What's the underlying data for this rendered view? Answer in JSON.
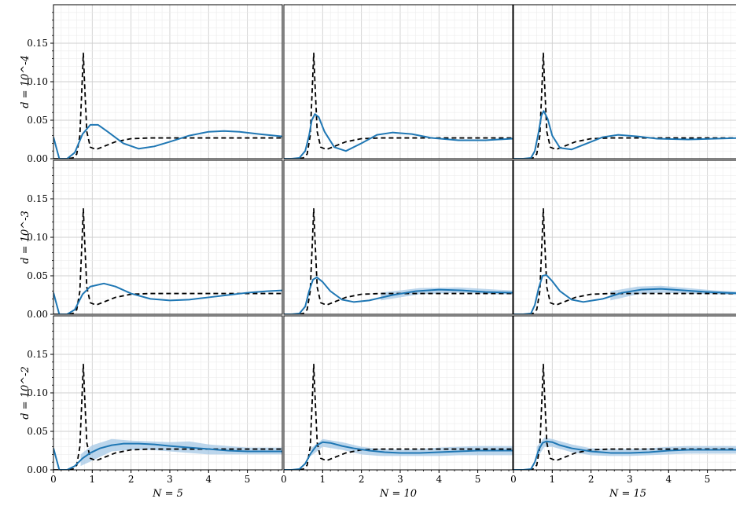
{
  "chart_data": {
    "type": "line",
    "layout": "3x3 grid of panels, shared x and y axes",
    "xlim": [
      0,
      5.9
    ],
    "ylim": [
      0,
      0.2
    ],
    "grid": true,
    "x_ticks": [
      "0",
      "1",
      "2",
      "3",
      "4",
      "5"
    ],
    "y_ticks": [
      "0.00",
      "0.05",
      "0.10",
      "0.15"
    ],
    "row_labels": [
      "d = 10^-4",
      "d = 10^-3",
      "d = 10^-2"
    ],
    "col_labels": [
      "N = 5",
      "N = 10",
      "N = 15"
    ],
    "colors": {
      "estimate": "#1f77b4",
      "band": "#a6c8e6",
      "reference": "#000000"
    },
    "reference": {
      "style": "dashed",
      "x": [
        0,
        0.3,
        0.5,
        0.6,
        0.68,
        0.74,
        0.77,
        0.8,
        0.86,
        0.95,
        1.1,
        1.3,
        1.6,
        2.0,
        2.5,
        3.0,
        4.0,
        5.0,
        5.9
      ],
      "y": [
        0,
        0,
        0.001,
        0.006,
        0.03,
        0.1,
        0.137,
        0.1,
        0.035,
        0.015,
        0.012,
        0.016,
        0.022,
        0.026,
        0.027,
        0.027,
        0.027,
        0.027,
        0.027
      ]
    },
    "panels": [
      {
        "row": 0,
        "col": 0,
        "x": [
          0,
          0.15,
          0.35,
          0.55,
          0.75,
          0.95,
          1.15,
          1.4,
          1.8,
          2.2,
          2.6,
          3.0,
          3.5,
          4.0,
          4.4,
          4.8,
          5.3,
          5.9
        ],
        "y": [
          0.028,
          0.0,
          0.0,
          0.008,
          0.032,
          0.044,
          0.044,
          0.035,
          0.02,
          0.013,
          0.016,
          0.022,
          0.03,
          0.035,
          0.036,
          0.035,
          0.032,
          0.029
        ],
        "band": null
      },
      {
        "row": 0,
        "col": 1,
        "x": [
          0,
          0.2,
          0.4,
          0.55,
          0.65,
          0.72,
          0.8,
          0.9,
          1.05,
          1.3,
          1.6,
          2.0,
          2.4,
          2.8,
          3.3,
          3.8,
          4.5,
          5.2,
          5.9
        ],
        "y": [
          0,
          0,
          0.001,
          0.01,
          0.03,
          0.05,
          0.058,
          0.054,
          0.035,
          0.015,
          0.01,
          0.02,
          0.031,
          0.034,
          0.032,
          0.027,
          0.024,
          0.024,
          0.026
        ],
        "band": null
      },
      {
        "row": 0,
        "col": 2,
        "x": [
          0,
          0.25,
          0.45,
          0.55,
          0.65,
          0.72,
          0.78,
          0.88,
          1.0,
          1.2,
          1.5,
          1.9,
          2.3,
          2.7,
          3.2,
          3.7,
          4.5,
          5.2,
          5.9
        ],
        "y": [
          0,
          0,
          0.001,
          0.01,
          0.035,
          0.056,
          0.062,
          0.052,
          0.03,
          0.014,
          0.012,
          0.02,
          0.028,
          0.031,
          0.029,
          0.026,
          0.025,
          0.026,
          0.027
        ],
        "band": null
      },
      {
        "row": 1,
        "col": 0,
        "x": [
          0,
          0.15,
          0.35,
          0.55,
          0.75,
          0.95,
          1.3,
          1.6,
          2.0,
          2.5,
          3.0,
          3.5,
          4.0,
          4.5,
          5.0,
          5.5,
          5.9
        ],
        "y": [
          0.028,
          0.0,
          0.0,
          0.006,
          0.026,
          0.036,
          0.04,
          0.036,
          0.027,
          0.02,
          0.018,
          0.019,
          0.022,
          0.025,
          0.028,
          0.03,
          0.031
        ],
        "band": null
      },
      {
        "row": 1,
        "col": 1,
        "x": [
          0,
          0.2,
          0.4,
          0.55,
          0.65,
          0.75,
          0.85,
          1.0,
          1.2,
          1.5,
          1.8,
          2.2,
          2.8,
          3.4,
          4.0,
          4.6,
          5.2,
          5.9
        ],
        "y": [
          0,
          0,
          0.001,
          0.01,
          0.03,
          0.045,
          0.048,
          0.042,
          0.03,
          0.019,
          0.016,
          0.018,
          0.025,
          0.03,
          0.032,
          0.031,
          0.029,
          0.028
        ],
        "band": {
          "x": [
            2.5,
            3.5,
            4.5,
            5.5,
            5.9
          ],
          "lower": [
            0.018,
            0.026,
            0.028,
            0.026,
            0.026
          ],
          "upper": [
            0.028,
            0.034,
            0.035,
            0.032,
            0.031
          ]
        }
      },
      {
        "row": 1,
        "col": 2,
        "x": [
          0,
          0.25,
          0.45,
          0.55,
          0.65,
          0.75,
          0.85,
          1.0,
          1.2,
          1.5,
          1.8,
          2.3,
          2.8,
          3.3,
          3.8,
          4.4,
          5.0,
          5.9
        ],
        "y": [
          0,
          0,
          0.001,
          0.012,
          0.034,
          0.05,
          0.051,
          0.043,
          0.03,
          0.019,
          0.016,
          0.02,
          0.028,
          0.032,
          0.033,
          0.031,
          0.029,
          0.027
        ],
        "band": {
          "x": [
            2.5,
            3.2,
            3.8,
            4.5,
            5.2,
            5.9
          ],
          "lower": [
            0.018,
            0.026,
            0.028,
            0.027,
            0.026,
            0.025
          ],
          "upper": [
            0.03,
            0.036,
            0.037,
            0.034,
            0.031,
            0.029
          ]
        }
      },
      {
        "row": 2,
        "col": 0,
        "x": [
          0,
          0.15,
          0.35,
          0.55,
          0.75,
          0.95,
          1.2,
          1.5,
          1.8,
          2.2,
          2.6,
          3.0,
          3.5,
          4.0,
          4.5,
          5.0,
          5.5,
          5.9
        ],
        "y": [
          0.028,
          0.0,
          0.0,
          0.005,
          0.015,
          0.022,
          0.028,
          0.032,
          0.034,
          0.034,
          0.033,
          0.031,
          0.029,
          0.027,
          0.025,
          0.024,
          0.024,
          0.024
        ],
        "band": {
          "x": [
            0.7,
            1.0,
            1.5,
            2.0,
            2.5,
            3.0,
            3.5,
            4.0,
            4.5,
            5.0,
            5.5,
            5.9
          ],
          "lower": [
            0.005,
            0.012,
            0.024,
            0.026,
            0.026,
            0.024,
            0.022,
            0.02,
            0.02,
            0.02,
            0.02,
            0.02
          ],
          "upper": [
            0.02,
            0.032,
            0.04,
            0.038,
            0.037,
            0.036,
            0.037,
            0.033,
            0.031,
            0.029,
            0.029,
            0.029
          ]
        }
      },
      {
        "row": 2,
        "col": 1,
        "x": [
          0,
          0.2,
          0.4,
          0.55,
          0.7,
          0.85,
          1.0,
          1.2,
          1.5,
          1.8,
          2.2,
          2.6,
          3.0,
          3.5,
          4.0,
          4.5,
          5.0,
          5.5,
          5.9
        ],
        "y": [
          0,
          0,
          0.001,
          0.008,
          0.022,
          0.032,
          0.036,
          0.035,
          0.031,
          0.028,
          0.025,
          0.023,
          0.022,
          0.022,
          0.023,
          0.024,
          0.025,
          0.025,
          0.025
        ],
        "band": {
          "x": [
            0.7,
            1.0,
            1.5,
            2.0,
            2.5,
            3.0,
            3.5,
            4.0,
            4.5,
            5.0,
            5.5,
            5.9
          ],
          "lower": [
            0.018,
            0.03,
            0.026,
            0.02,
            0.018,
            0.018,
            0.018,
            0.018,
            0.019,
            0.019,
            0.019,
            0.019
          ],
          "upper": [
            0.028,
            0.04,
            0.036,
            0.03,
            0.027,
            0.026,
            0.027,
            0.029,
            0.03,
            0.031,
            0.031,
            0.031
          ]
        }
      },
      {
        "row": 2,
        "col": 2,
        "x": [
          0,
          0.25,
          0.45,
          0.55,
          0.65,
          0.75,
          0.85,
          1.0,
          1.2,
          1.5,
          2.0,
          2.5,
          3.0,
          3.5,
          4.0,
          4.5,
          5.0,
          5.5,
          5.9
        ],
        "y": [
          0,
          0,
          0.001,
          0.01,
          0.026,
          0.035,
          0.037,
          0.036,
          0.032,
          0.028,
          0.024,
          0.022,
          0.022,
          0.023,
          0.025,
          0.026,
          0.026,
          0.026,
          0.026
        ],
        "band": {
          "x": [
            0.6,
            0.8,
            1.0,
            1.5,
            2.0,
            2.5,
            3.0,
            3.5,
            4.0,
            4.5,
            5.0,
            5.5,
            5.9
          ],
          "lower": [
            0.015,
            0.03,
            0.03,
            0.023,
            0.019,
            0.018,
            0.018,
            0.019,
            0.02,
            0.021,
            0.021,
            0.021,
            0.021
          ],
          "upper": [
            0.03,
            0.042,
            0.04,
            0.033,
            0.028,
            0.027,
            0.027,
            0.028,
            0.03,
            0.031,
            0.031,
            0.031,
            0.031
          ]
        }
      }
    ]
  }
}
